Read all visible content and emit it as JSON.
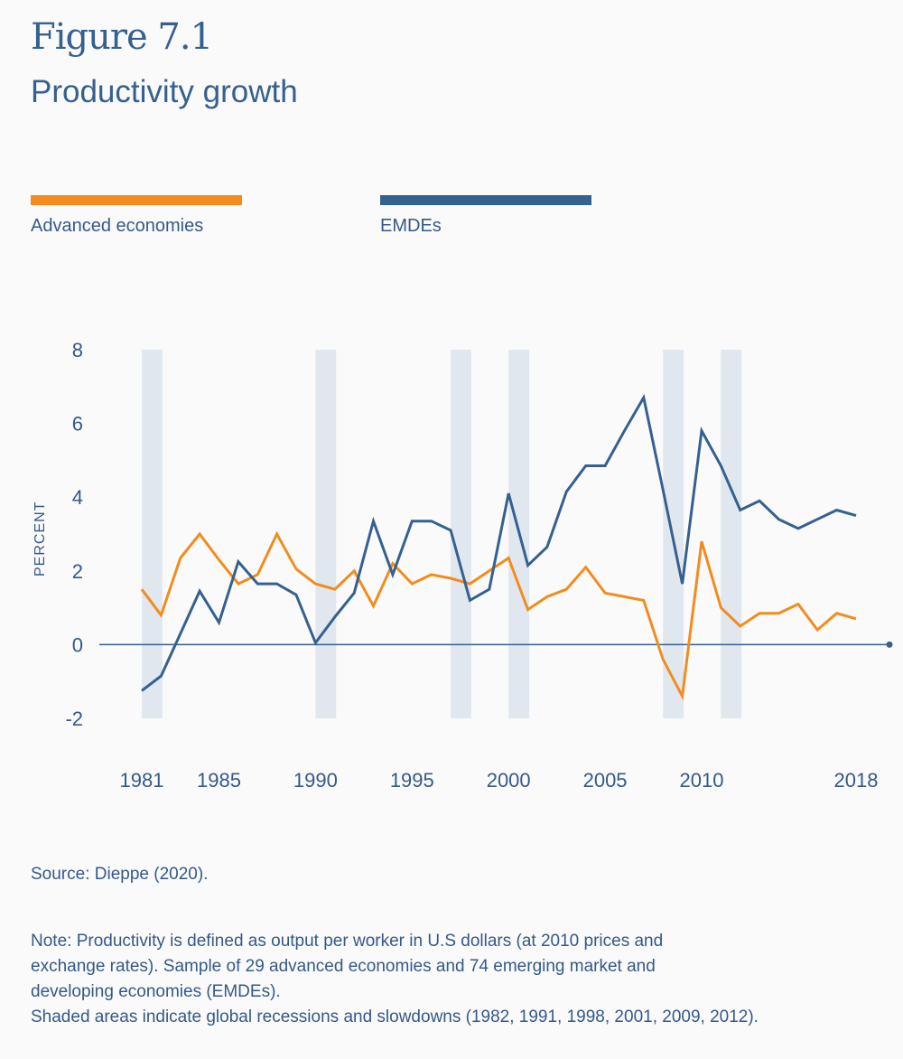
{
  "header": {
    "figure_label": "Figure 7.1",
    "title": "Productivity growth"
  },
  "footer": {
    "source": "Source: Dieppe (2020).",
    "note_lines": [
      "Note: Productivity is defined as output per worker in U.S dollars (at 2010 prices and",
      "exchange rates). Sample of 29 advanced economies and 74 emerging market and",
      "developing economies (EMDEs).",
      "Shaded areas indicate global recessions and slowdowns (1982, 1991, 1998, 2001, 2009, 2012)."
    ]
  },
  "chart_data": {
    "type": "line",
    "title": "Productivity growth",
    "ylabel": "PERCENT",
    "xlabel": "",
    "ylim": [
      -2,
      8
    ],
    "xlim": [
      1981,
      2018
    ],
    "yticks": [
      "-2",
      "0",
      "2",
      "4",
      "6",
      "8"
    ],
    "xticks": [
      "1981",
      "1985",
      "1990",
      "1995",
      "2000",
      "2005",
      "2010",
      "2018"
    ],
    "grid": false,
    "legend": "top",
    "shaded_years": [
      1982,
      1991,
      1998,
      2001,
      2009,
      2012
    ],
    "shade_color": "#e1e7ef",
    "x": [
      1981,
      1982,
      1983,
      1984,
      1985,
      1986,
      1987,
      1988,
      1989,
      1990,
      1991,
      1992,
      1993,
      1994,
      1995,
      1996,
      1997,
      1998,
      1999,
      2000,
      2001,
      2002,
      2003,
      2004,
      2005,
      2006,
      2007,
      2008,
      2009,
      2010,
      2011,
      2012,
      2013,
      2014,
      2015,
      2016,
      2017,
      2018
    ],
    "series": [
      {
        "name": "Advanced economies",
        "color": "#f28c1e",
        "values": [
          1.5,
          0.8,
          2.35,
          3.0,
          2.3,
          1.65,
          1.9,
          3.0,
          2.05,
          1.65,
          1.5,
          2.0,
          1.05,
          2.2,
          1.65,
          1.9,
          1.8,
          1.65,
          2.0,
          2.35,
          0.95,
          1.3,
          1.5,
          2.1,
          1.4,
          1.3,
          1.2,
          -0.4,
          -1.4,
          2.8,
          1.0,
          0.5,
          0.85,
          0.85,
          1.1,
          0.4,
          0.85,
          0.7
        ]
      },
      {
        "name": "EMDEs",
        "color": "#35608f",
        "values": [
          -1.25,
          -0.85,
          0.3,
          1.45,
          0.6,
          2.25,
          1.65,
          1.65,
          1.35,
          0.05,
          0.75,
          1.4,
          3.35,
          1.9,
          3.35,
          3.35,
          3.1,
          1.2,
          1.5,
          4.1,
          2.15,
          2.65,
          4.15,
          4.85,
          4.85,
          5.8,
          6.7,
          4.2,
          1.65,
          5.8,
          4.85,
          3.65,
          3.9,
          3.4,
          3.15,
          3.4,
          3.65,
          3.5
        ]
      }
    ]
  }
}
